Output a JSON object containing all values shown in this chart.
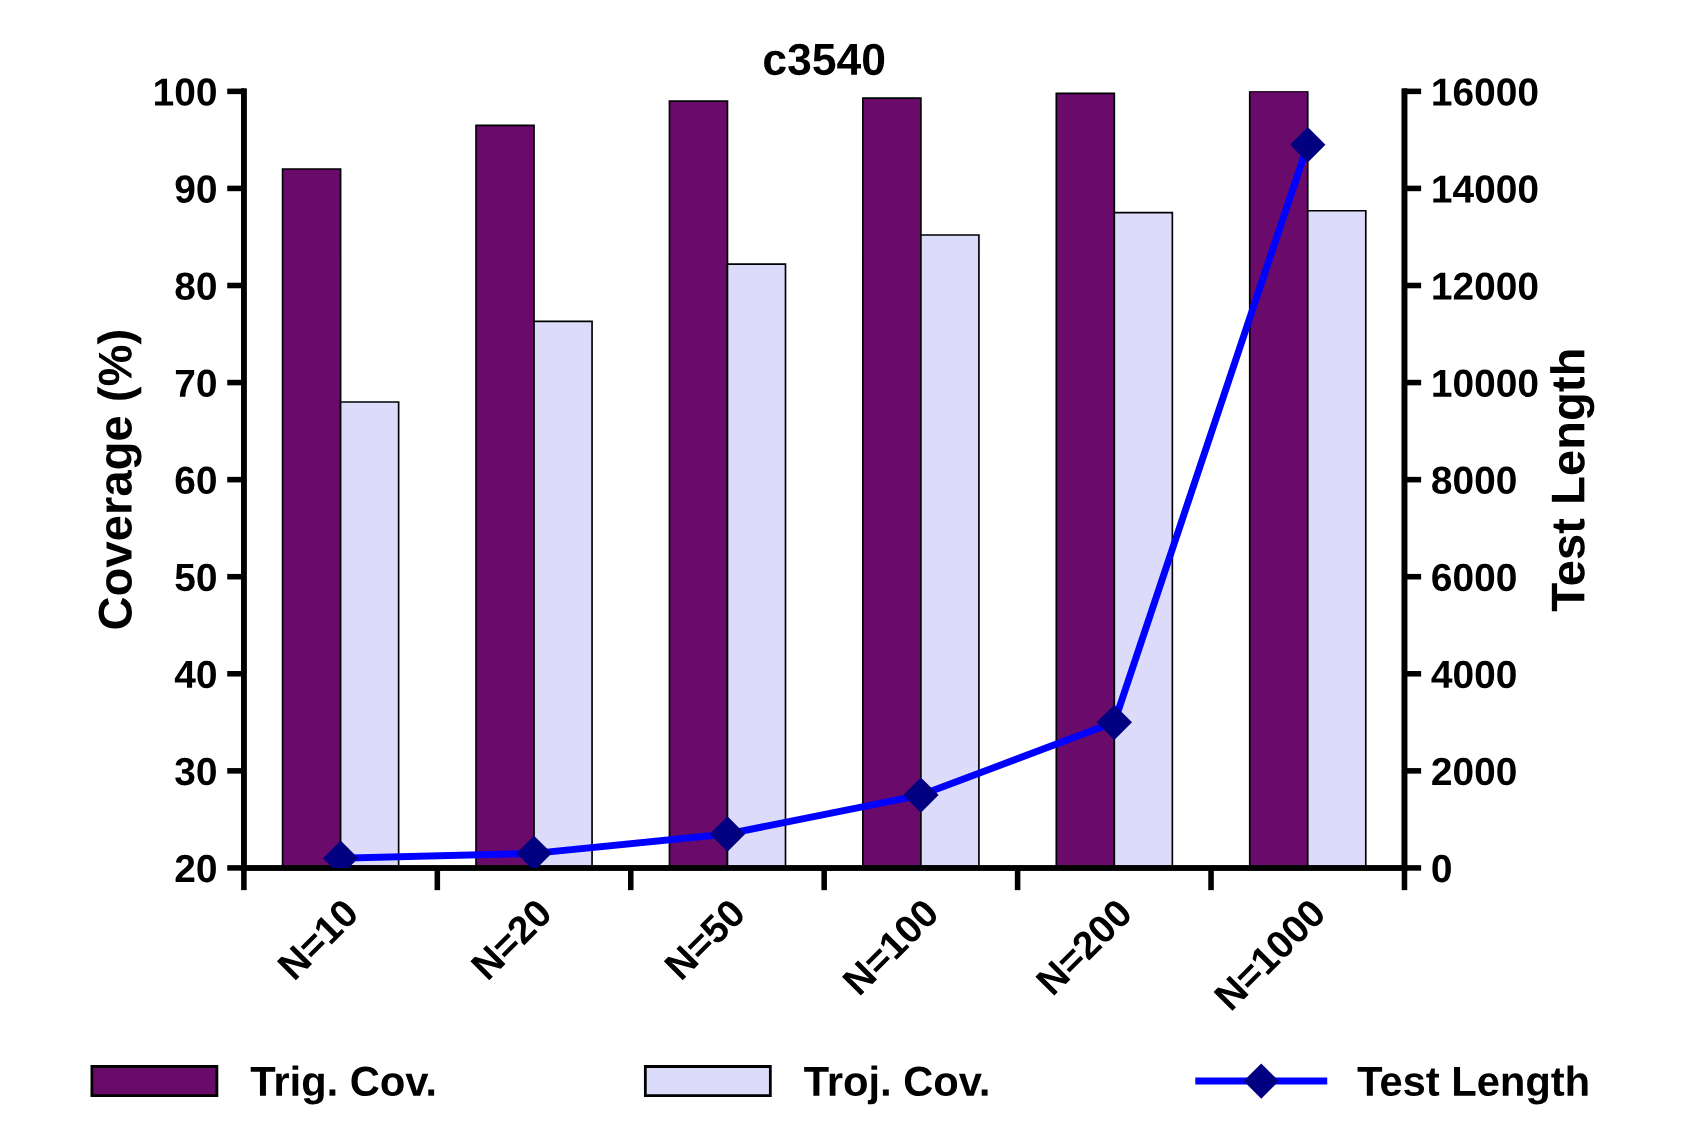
{
  "chart_data": {
    "type": "bar",
    "title": "c3540",
    "xlabel": null,
    "ylabel": "Coverage (%)",
    "y2label": "Test Length",
    "categories": [
      "N=10",
      "N=20",
      "N=50",
      "N=100",
      "N=200",
      "N=1000"
    ],
    "series": [
      {
        "name": "Trig. Cov.",
        "color": "#6a0a6a",
        "values": [
          92,
          96.5,
          99,
          99.3,
          99.8,
          100
        ]
      },
      {
        "name": "Troj. Cov.",
        "color": "#dcdcfa",
        "values": [
          68,
          76.3,
          82.2,
          85.2,
          87.5,
          87.7
        ]
      },
      {
        "name": "Test Length",
        "type": "line",
        "axis": "y2",
        "color": "#0000ff",
        "marker": "diamond",
        "values": [
          200,
          300,
          700,
          1500,
          3000,
          14900
        ]
      }
    ],
    "ylim": [
      20,
      100
    ],
    "yticks": [
      20,
      30,
      40,
      50,
      60,
      70,
      80,
      90,
      100
    ],
    "y2lim": [
      0,
      16000
    ],
    "y2ticks": [
      0,
      2000,
      4000,
      6000,
      8000,
      10000,
      12000,
      14000,
      16000
    ],
    "grid": false,
    "legend": "bottom"
  }
}
